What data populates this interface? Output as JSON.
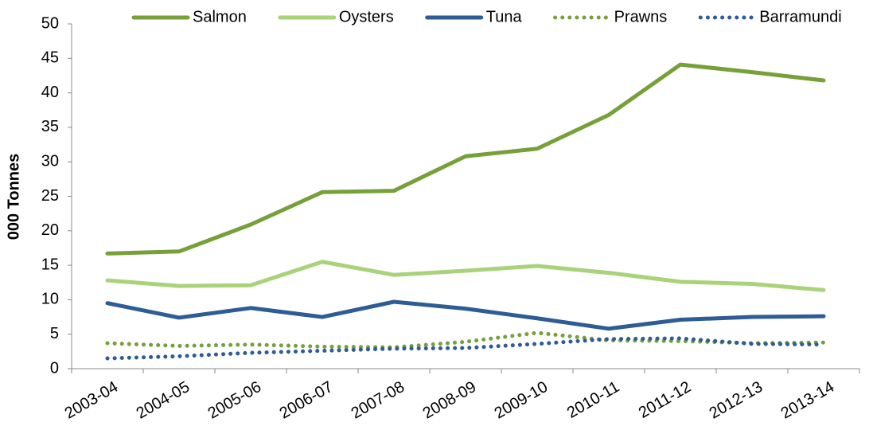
{
  "chart_data": {
    "type": "line",
    "y_label": "000 Tonnes",
    "categories": [
      "2003-04",
      "2004-05",
      "2005-06",
      "2006-07",
      "2007-08",
      "2008-09",
      "2009-10",
      "2010-11",
      "2011-12",
      "2012-13",
      "2013-14"
    ],
    "series": [
      {
        "name": "Salmon",
        "color": "#77a03a",
        "dash": "solid",
        "values": [
          16.7,
          17.0,
          20.9,
          25.6,
          25.8,
          30.8,
          31.9,
          36.8,
          44.1,
          43.0,
          41.8
        ]
      },
      {
        "name": "Oysters",
        "color": "#a9d27a",
        "dash": "solid",
        "values": [
          12.8,
          12.0,
          12.1,
          15.5,
          13.6,
          14.2,
          14.9,
          13.9,
          12.6,
          12.3,
          11.4
        ]
      },
      {
        "name": "Tuna",
        "color": "#2e5c95",
        "dash": "solid",
        "values": [
          9.5,
          7.4,
          8.8,
          7.5,
          9.7,
          8.7,
          7.3,
          5.8,
          7.1,
          7.5,
          7.6
        ]
      },
      {
        "name": "Prawns",
        "color": "#77a03a",
        "dash": "dotted",
        "values": [
          3.7,
          3.3,
          3.5,
          3.2,
          3.1,
          3.9,
          5.2,
          4.1,
          4.0,
          3.7,
          3.8
        ]
      },
      {
        "name": "Barramundi",
        "color": "#2e5c95",
        "dash": "dotted",
        "values": [
          1.5,
          1.8,
          2.3,
          2.6,
          2.9,
          3.0,
          3.6,
          4.3,
          4.4,
          3.6,
          3.5
        ]
      }
    ],
    "ylim": [
      0,
      50
    ],
    "yticks": [
      0,
      5,
      10,
      15,
      20,
      25,
      30,
      35,
      40,
      45,
      50
    ],
    "legend": "top"
  }
}
